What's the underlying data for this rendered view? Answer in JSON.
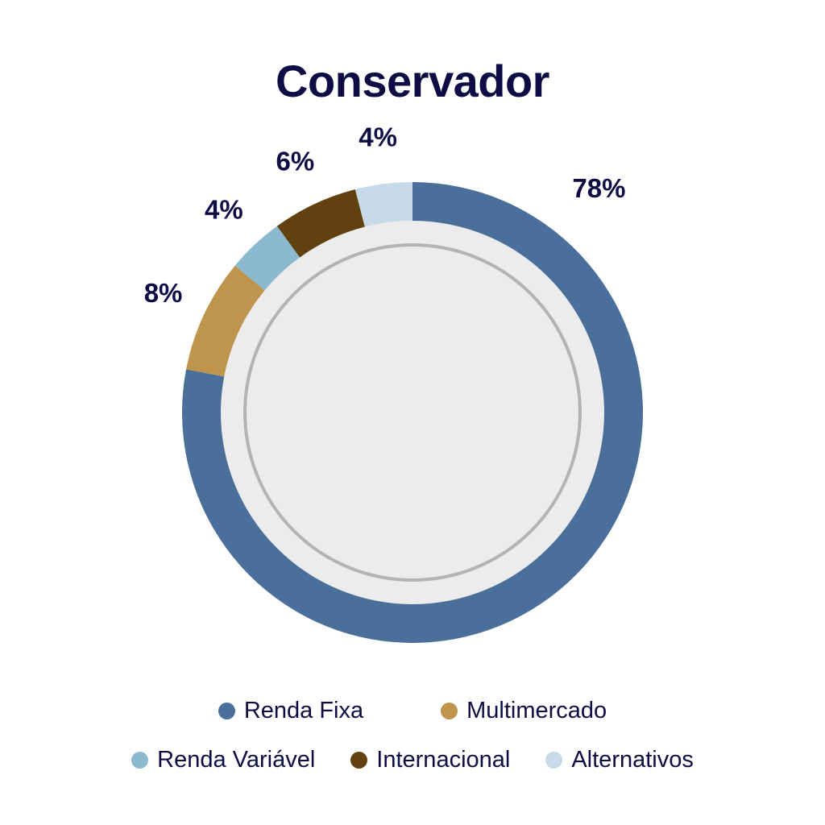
{
  "chart_data": {
    "type": "pie",
    "donut": true,
    "title": "Conservador",
    "categories": [
      "Renda Fixa",
      "Multimercado",
      "Renda Variável",
      "Internacional",
      "Alternativos"
    ],
    "values": [
      78,
      8,
      4,
      6,
      4
    ],
    "labels": [
      "78%",
      "8%",
      "4%",
      "6%",
      "4%"
    ],
    "colors": [
      "#4a6f9a",
      "#bf954e",
      "#8ab9d0",
      "#60410f",
      "#c6dbe7"
    ],
    "direction": "clockwise from top",
    "legend": {
      "placement": "bottom",
      "items": [
        {
          "label": "Renda Fixa",
          "color": "#4a6f9a"
        },
        {
          "label": "Multimercado",
          "color": "#bf954e"
        },
        {
          "label": "Renda Variável",
          "color": "#8ab9d0"
        },
        {
          "label": "Internacional",
          "color": "#60410f"
        },
        {
          "label": "Alternativos",
          "color": "#c6dbe7"
        }
      ]
    },
    "center_fill": "#ececec",
    "center_ring_color": "#b3b3b3"
  }
}
